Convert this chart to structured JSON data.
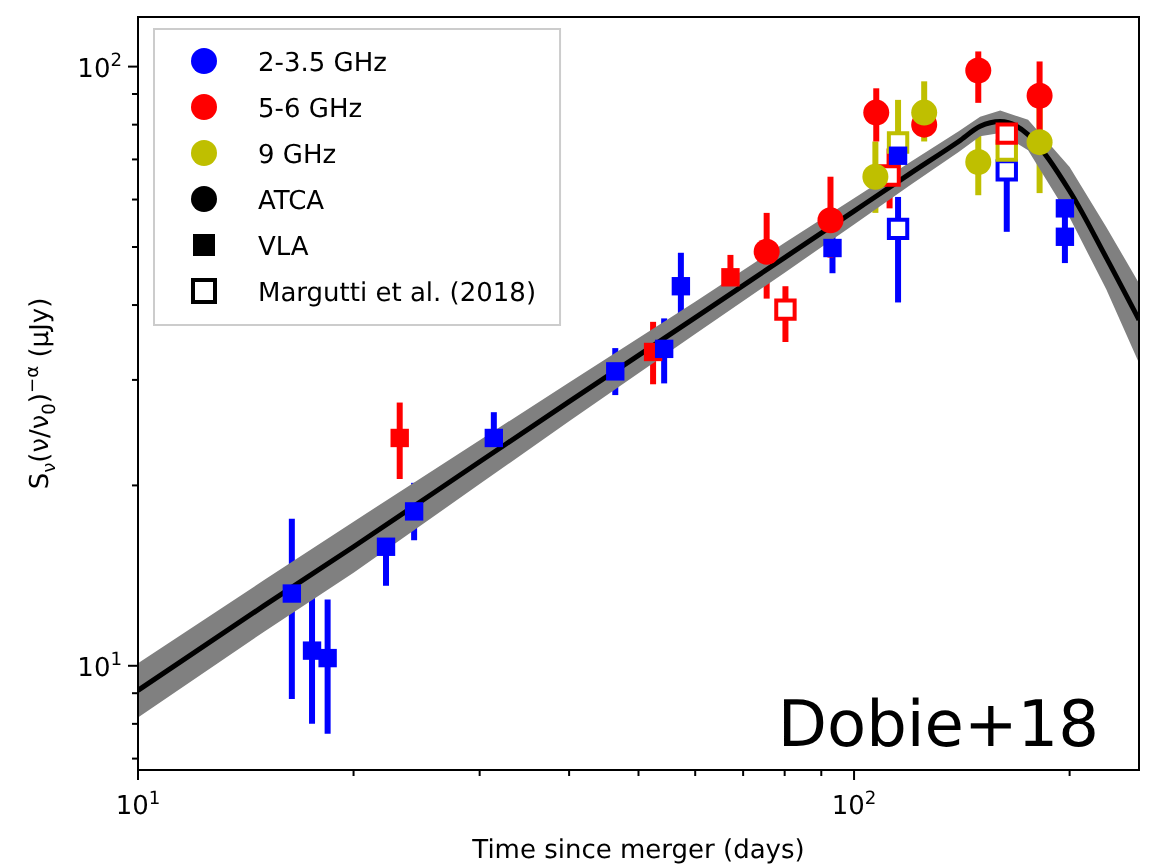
{
  "chart_data": {
    "type": "scatter",
    "xlabel": "Time since merger (days)",
    "ylabel": "S$_{ν}$(ν/ν$_{0}$)$^{−α}$ (μJy)",
    "annotations": [
      "Dobie+18"
    ],
    "log": "xy",
    "xlim": [
      10,
      250
    ],
    "ylim": [
      6.7,
      121
    ],
    "xticks": [
      {
        "value": 10,
        "label": "10$^{1}$"
      },
      {
        "value": 20,
        "label": null
      },
      {
        "value": 30,
        "label": null
      },
      {
        "value": 40,
        "label": null
      },
      {
        "value": 50,
        "label": null
      },
      {
        "value": 60,
        "label": null
      },
      {
        "value": 70,
        "label": null
      },
      {
        "value": 80,
        "label": null
      },
      {
        "value": 90,
        "label": null
      },
      {
        "value": 100,
        "label": "10$^{2}$"
      },
      {
        "value": 200,
        "label": null
      }
    ],
    "yticks": [
      {
        "value": 7,
        "label": null
      },
      {
        "value": 8,
        "label": null
      },
      {
        "value": 9,
        "label": null
      },
      {
        "value": 10,
        "label": "10$^{1}$"
      },
      {
        "value": 20,
        "label": null
      },
      {
        "value": 30,
        "label": null
      },
      {
        "value": 40,
        "label": null
      },
      {
        "value": 50,
        "label": null
      },
      {
        "value": 60,
        "label": null
      },
      {
        "value": 70,
        "label": null
      },
      {
        "value": 80,
        "label": null
      },
      {
        "value": 90,
        "label": null
      },
      {
        "value": 100,
        "label": "10$^{2}$"
      }
    ],
    "grid": false,
    "legend": "top left",
    "series": [
      {
        "type": "line",
        "color": "#000000",
        "line_style": "solid",
        "marker": "none",
        "x": [
          10,
          15,
          20,
          30,
          40,
          60,
          80,
          100,
          120,
          140,
          150,
          160,
          175,
          200,
          225,
          250
        ],
        "values": [
          9.1,
          12.6,
          15.8,
          21.9,
          27.6,
          38.1,
          48,
          57.4,
          66.4,
          75,
          79.5,
          81,
          77,
          62,
          48,
          37.8
        ],
        "lower": [
          8.2,
          11.4,
          14.3,
          20.1,
          25.6,
          35.8,
          45.3,
          54.5,
          63.5,
          72,
          76.5,
          77.5,
          72.5,
          56,
          42.5,
          32
        ],
        "upper": [
          10.1,
          13.9,
          17.4,
          23.8,
          29.7,
          40.5,
          50.8,
          60.3,
          69.4,
          78,
          82.5,
          84.5,
          81.5,
          68,
          54,
          43.5
        ]
      },
      {
        "color": "#0000ff",
        "marker": "square",
        "x": [
          16.4,
          17.5,
          18.4,
          22.2,
          24.3,
          31.4,
          46.4,
          54.3,
          57.3,
          93.3,
          115.2,
          197,
          197
        ],
        "values": [
          13.2,
          10.6,
          10.3,
          15.8,
          18.1,
          24,
          31,
          33.8,
          43,
          49.8,
          71,
          58,
          52
        ],
        "errors": [
          [
            8.8,
            17.6
          ],
          [
            8,
            13.4
          ],
          [
            7.7,
            12.9
          ],
          [
            13.6,
            18.2
          ],
          [
            16.2,
            20.2
          ],
          [
            21.5,
            26.5
          ],
          [
            28.3,
            33.9
          ],
          [
            29.6,
            38
          ],
          [
            36.8,
            48.9
          ],
          [
            45.2,
            54
          ],
          null,
          null,
          [
            47,
            57
          ]
        ]
      },
      {
        "color": "#ff0000",
        "marker": "square",
        "x": [
          23.2,
          52.4,
          67.2
        ],
        "values": [
          24,
          33.4,
          44.5
        ],
        "errors": [
          [
            20.5,
            27.5
          ],
          [
            29.5,
            37.5
          ],
          [
            40.5,
            48.5
          ]
        ]
      },
      {
        "color": "#bfbf00",
        "marker": "circle",
        "x": [
          107.1,
          125.3,
          149.1,
          181.6
        ],
        "values": [
          65.5,
          83.8,
          69.3,
          74.8
        ],
        "errors": [
          [
            57,
            75
          ],
          [
            75,
            94.5
          ],
          [
            61,
            76.8
          ],
          [
            61.5,
            86
          ]
        ]
      },
      {
        "color": "#ff0000",
        "marker": "square-open",
        "x": [
          80.2,
          112.1,
          163.4
        ],
        "values": [
          39.3,
          65.8,
          77.3
        ],
        "errors": [
          [
            34.7,
            43
          ],
          [
            58,
            73
          ],
          null
        ]
      },
      {
        "color": "#ff0000",
        "marker": "circle",
        "x": [
          75.5,
          92.7,
          107.4,
          125.3,
          149.1,
          181.6
        ],
        "values": [
          49.1,
          55.4,
          83.8,
          80,
          98.5,
          89.4
        ],
        "errors": [
          [
            41,
            57
          ],
          [
            48,
            65.5
          ],
          [
            75,
            92
          ],
          null,
          [
            87,
            106
          ],
          [
            77,
            102
          ]
        ]
      },
      {
        "color": "#bfbf00",
        "marker": "square-open",
        "x": [
          115.2,
          163.4
        ],
        "values": [
          74.7,
          72.4
        ],
        "errors": [
          [
            66,
            88
          ],
          null
        ]
      },
      {
        "color": "#0000ff",
        "marker": "square-open",
        "x": [
          115.2,
          163.4
        ],
        "values": [
          53.6,
          67.1
        ],
        "errors": [
          [
            40.4,
            60.6
          ],
          [
            53,
            72
          ]
        ]
      },
      {
        "name": "2-3.5 GHz",
        "color": "#0000ff",
        "marker": "circle"
      },
      {
        "name": "5-6 GHz",
        "color": "#ff0000",
        "marker": "circle"
      },
      {
        "name": "9 GHz",
        "color": "#bfbf00",
        "marker": "circle"
      },
      {
        "name": "ATCA",
        "color": "#000000",
        "marker": "circle"
      },
      {
        "name": "VLA",
        "color": "#000000",
        "marker": "square"
      },
      {
        "name": "Margutti et al. (2018)",
        "color": "#000000",
        "marker": "square-open"
      }
    ]
  }
}
